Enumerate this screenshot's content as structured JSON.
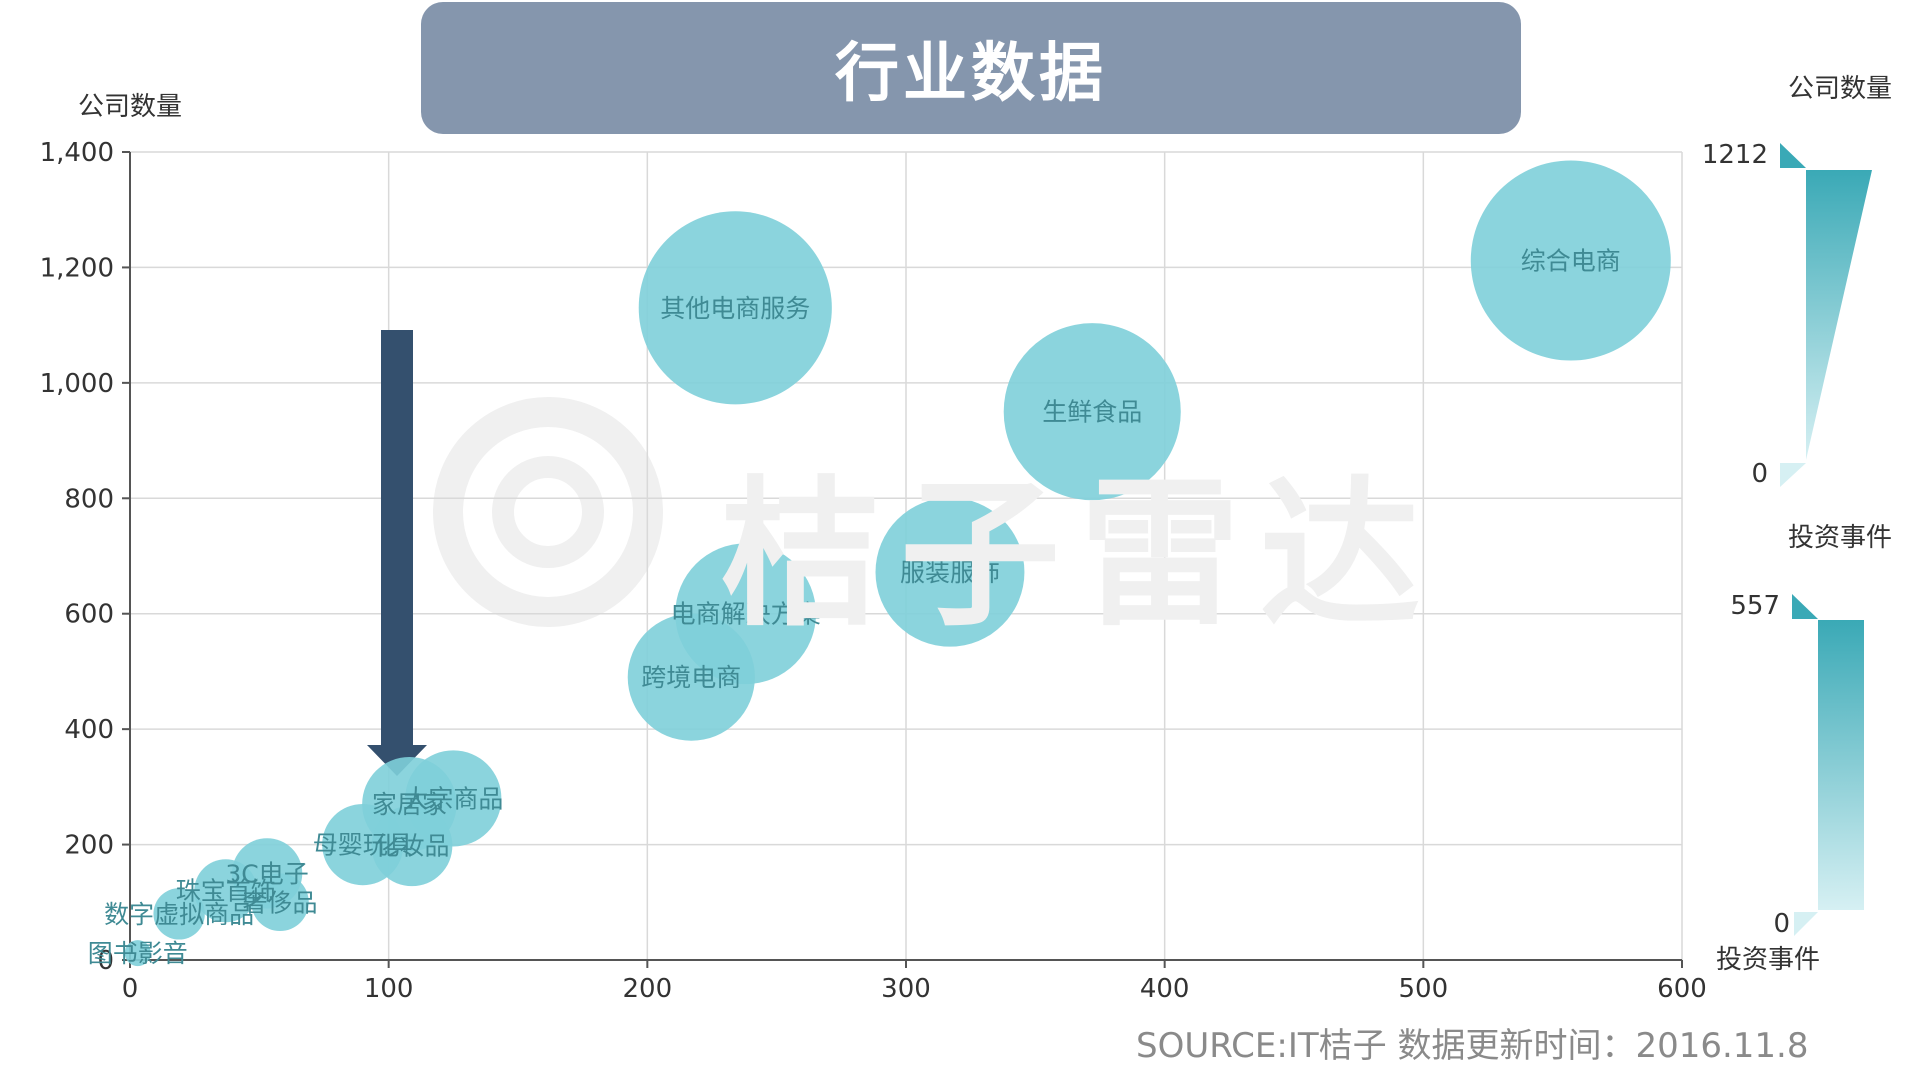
{
  "title": "行业数据",
  "source": "SOURCE:IT桔子 数据更新时间：2016.11.8",
  "watermark": "桔子雷达",
  "colors": {
    "bubble": "#7ecfd9",
    "bubble_label": "#3f8a94",
    "arrow": "#34506e",
    "banner": "#8596ad",
    "grid": "#d9d9d9",
    "legend_dark": "#3aa9b6",
    "legend_light": "#d6f0f3"
  },
  "chart_data": {
    "type": "scatter",
    "title": "行业数据",
    "ylabel": "公司数量",
    "xlim": [
      0,
      600
    ],
    "ylim": [
      0,
      1400
    ],
    "xticks": [
      0,
      100,
      200,
      300,
      400,
      500,
      600
    ],
    "yticks": [
      0,
      200,
      400,
      600,
      800,
      1000,
      1200,
      1400
    ],
    "xtick_labels": [
      "0",
      "100",
      "200",
      "300",
      "400",
      "500",
      "600"
    ],
    "ytick_labels": [
      "0",
      "200",
      "400",
      "600",
      "800",
      "1,000",
      "1,200",
      "1,400"
    ],
    "grid": true,
    "legend": {
      "size_title": "公司数量",
      "size_max": "1212",
      "size_min": "0",
      "color_title": "投资事件",
      "color_max": "557",
      "color_min": "0",
      "color_caption": "投资事件"
    },
    "points": [
      {
        "label": "综合电商",
        "x": 557,
        "y": 1212
      },
      {
        "label": "其他电商服务",
        "x": 234,
        "y": 1130
      },
      {
        "label": "生鲜食品",
        "x": 372,
        "y": 950
      },
      {
        "label": "服装服饰",
        "x": 317,
        "y": 672
      },
      {
        "label": "电商解决方案",
        "x": 238,
        "y": 600
      },
      {
        "label": "跨境电商",
        "x": 217,
        "y": 490
      },
      {
        "label": "大宗商品",
        "x": 125,
        "y": 280
      },
      {
        "label": "家居家",
        "x": 108,
        "y": 270
      },
      {
        "label": "母婴玩具",
        "x": 90,
        "y": 200
      },
      {
        "label": "化妆品",
        "x": 109,
        "y": 198
      },
      {
        "label": "3C电子",
        "x": 53,
        "y": 150
      },
      {
        "label": "珠宝首饰",
        "x": 37,
        "y": 120
      },
      {
        "label": "奢侈品",
        "x": 58,
        "y": 100
      },
      {
        "label": "数字虚拟商品",
        "x": 19,
        "y": 80
      },
      {
        "label": "图书影音",
        "x": 3,
        "y": 12
      }
    ]
  }
}
